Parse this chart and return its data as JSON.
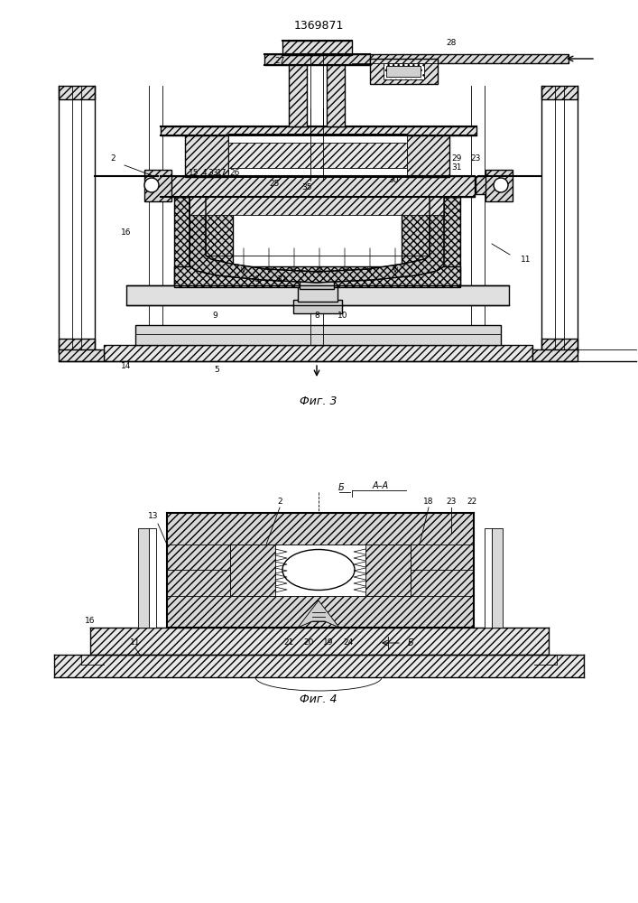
{
  "title": "1369871",
  "fig3_label": "Фиг. 3",
  "fig4_label": "Фиг. 4",
  "bg_color": "#ffffff",
  "line_color": "#000000"
}
